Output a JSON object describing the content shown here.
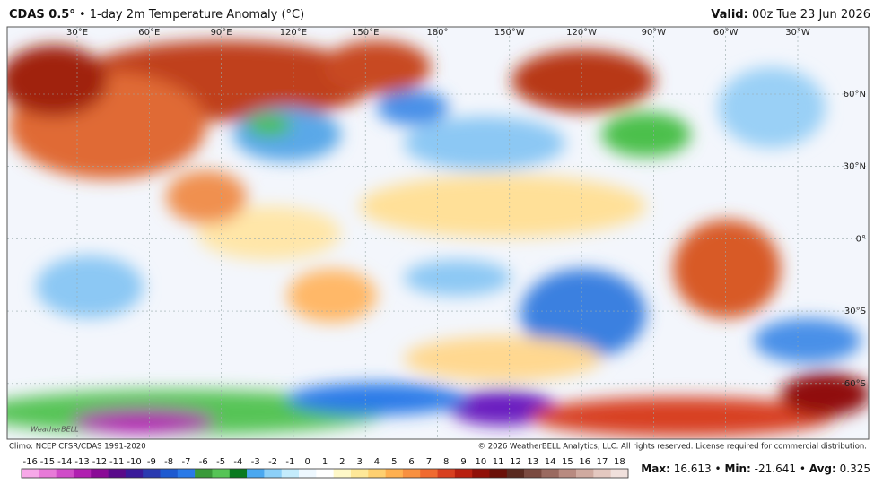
{
  "header": {
    "title_bold": "CDAS 0.5°",
    "title": "• 1-day 2m Temperature Anomaly (°C)",
    "valid_label": "Valid:",
    "valid_time": "00z Tue 23 Jun 2026"
  },
  "map": {
    "lon_labels": [
      "30°E",
      "60°E",
      "90°E",
      "120°E",
      "150°E",
      "180°",
      "150°W",
      "120°W",
      "90°W",
      "60°W",
      "30°W"
    ],
    "lat_labels": [
      "60°N",
      "30°N",
      "0°",
      "30°S",
      "60°S"
    ],
    "logo": "WeatherBELL"
  },
  "footer": {
    "climo": "Climo: NCEP CFSR/CDAS 1991-2020",
    "copyright": "© 2026 WeatherBELL Analytics, LLC. All rights reserved. License required for commercial distribution."
  },
  "colorbar": {
    "labels": [
      -16,
      -15,
      -14,
      -13,
      -12,
      -11,
      -10,
      -9,
      -8,
      -7,
      -6,
      -5,
      -4,
      -3,
      -2,
      -1,
      0,
      1,
      2,
      3,
      4,
      5,
      6,
      7,
      8,
      9,
      10,
      11,
      12,
      13,
      14,
      15,
      16,
      17,
      18
    ],
    "colors": [
      "#f7a8e8",
      "#e87ad8",
      "#d04cc8",
      "#b020b0",
      "#8a0a96",
      "#5a0a8a",
      "#3a1a9a",
      "#2a3ab0",
      "#1e5ad0",
      "#2a7ae8",
      "#3a9a3a",
      "#56c456",
      "#0a7a20",
      "#4aa8f0",
      "#8cd0f8",
      "#c4ecfc",
      "#eef8ff",
      "#ffffff",
      "#fff8c8",
      "#ffe898",
      "#ffd070",
      "#ffb050",
      "#f89040",
      "#f06a30",
      "#d84020",
      "#b82010",
      "#901008",
      "#6a1008",
      "#5a2a20",
      "#7a4a40",
      "#9a6a60",
      "#b88a80",
      "#d0aaa0",
      "#e4c8c0",
      "#f0e0dc"
    ]
  },
  "stats": {
    "max_label": "Max:",
    "max": 16.613,
    "min_label": "Min:",
    "min": -21.641,
    "avg_label": "Avg:",
    "avg": 0.325,
    "separator": "•"
  }
}
